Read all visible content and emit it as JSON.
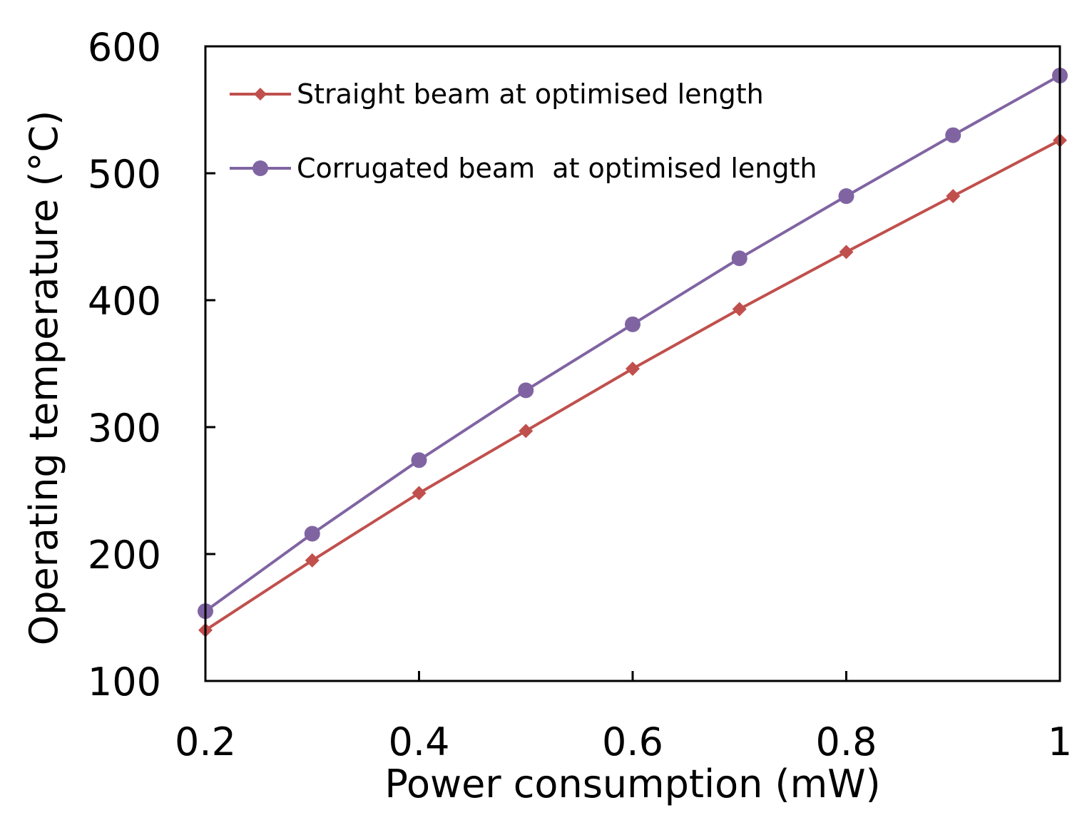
{
  "chart_data": {
    "type": "line",
    "title": "",
    "xlabel": "Power consumption (mW)",
    "ylabel": "Operating temperature (°C)",
    "xlim": [
      0.2,
      1.0
    ],
    "ylim": [
      100,
      600
    ],
    "x_ticks": [
      0.2,
      0.4,
      0.6,
      0.8,
      1.0
    ],
    "x_tick_labels": [
      "0.2",
      "0.4",
      "0.6",
      "0.8",
      "1"
    ],
    "y_ticks": [
      100,
      200,
      300,
      400,
      500,
      600
    ],
    "y_tick_labels": [
      "100",
      "200",
      "300",
      "400",
      "500",
      "600"
    ],
    "grid": false,
    "legend_position": "top-left",
    "x": [
      0.2,
      0.3,
      0.4,
      0.5,
      0.6,
      0.7,
      0.8,
      0.9,
      1.0
    ],
    "series": [
      {
        "name": "Straight beam at optimised length",
        "color": "#c0504d",
        "marker": "diamond",
        "values": [
          140,
          195,
          248,
          297,
          346,
          393,
          438,
          482,
          526
        ]
      },
      {
        "name": "Corrugated beam  at optimised length",
        "color": "#8064a2",
        "marker": "circle",
        "values": [
          155,
          216,
          274,
          329,
          381,
          433,
          482,
          530,
          577
        ]
      }
    ]
  }
}
